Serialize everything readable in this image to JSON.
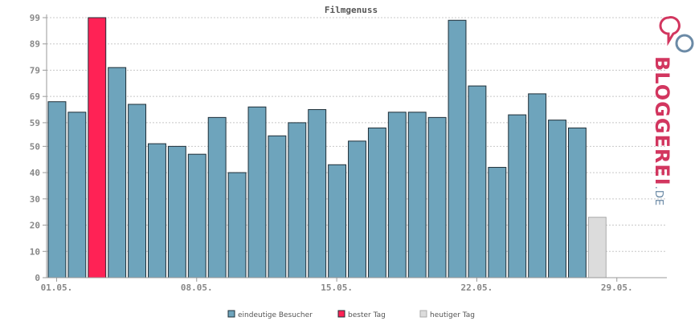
{
  "chart_data": {
    "type": "bar",
    "title": "Filmgenuss",
    "xlabel": "",
    "ylabel": "",
    "ylim": [
      0,
      99
    ],
    "yticks": [
      0,
      10,
      20,
      30,
      40,
      50,
      59,
      69,
      79,
      89,
      99
    ],
    "xtick_labels": [
      {
        "index": 0,
        "label": "01.05."
      },
      {
        "index": 7,
        "label": "08.05."
      },
      {
        "index": 14,
        "label": "15.05."
      },
      {
        "index": 21,
        "label": "22.05."
      },
      {
        "index": 28,
        "label": "29.05."
      }
    ],
    "num_slots": 31,
    "grid": true,
    "legend_position": "bottom",
    "values": [
      67,
      63,
      99,
      80,
      66,
      51,
      50,
      47,
      61,
      40,
      65,
      54,
      59,
      64,
      43,
      52,
      57,
      63,
      63,
      61,
      98,
      73,
      42,
      62,
      70,
      60,
      57,
      23
    ],
    "kinds": [
      "v",
      "v",
      "b",
      "v",
      "v",
      "v",
      "v",
      "v",
      "v",
      "v",
      "v",
      "v",
      "v",
      "v",
      "v",
      "v",
      "v",
      "v",
      "v",
      "v",
      "v",
      "v",
      "v",
      "v",
      "v",
      "v",
      "v",
      "t"
    ],
    "series": [
      {
        "name": "eindeutige Besucher",
        "kind": "v"
      },
      {
        "name": "bester Tag",
        "kind": "b"
      },
      {
        "name": "heutiger Tag",
        "kind": "t"
      }
    ],
    "colors": {
      "v": "#6ea4bc",
      "b": "#ff2255",
      "t": "#dcdcdc"
    }
  },
  "logo": {
    "main": "BLOGGEREI",
    "tld": ".DE"
  }
}
